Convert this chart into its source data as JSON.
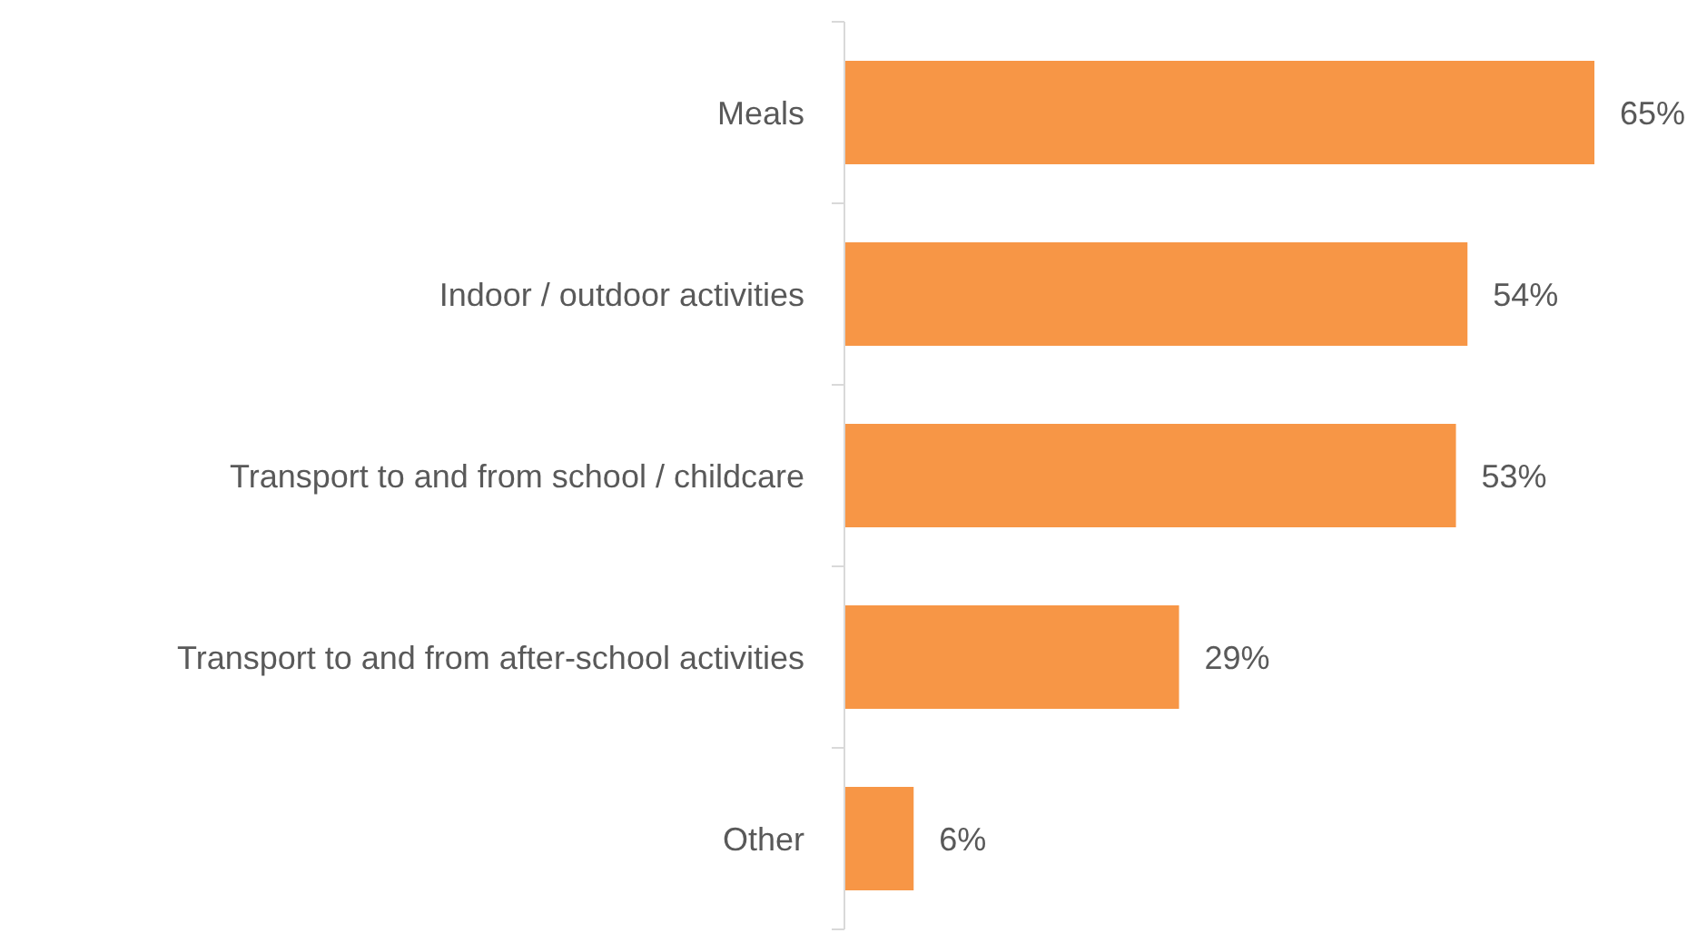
{
  "chart_data": {
    "type": "bar",
    "orientation": "horizontal",
    "categories": [
      "Meals",
      "Indoor / outdoor activities",
      "Transport to and from school / childcare",
      "Transport to and from after-school activities",
      "Other"
    ],
    "values": [
      65,
      54,
      53,
      29,
      6
    ],
    "value_labels": [
      "65%",
      "54%",
      "53%",
      "29%",
      "6%"
    ],
    "color": "#f79646"
  }
}
